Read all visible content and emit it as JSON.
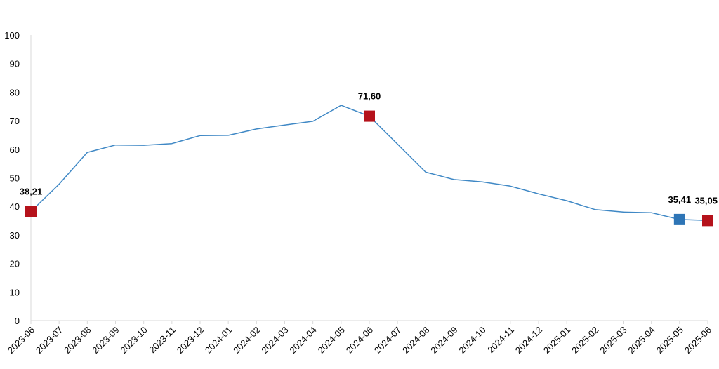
{
  "chart_data": {
    "type": "line",
    "title": "",
    "xlabel": "",
    "ylabel": "",
    "ylim": [
      0,
      100
    ],
    "yticks": [
      0,
      10,
      20,
      30,
      40,
      50,
      60,
      70,
      80,
      90,
      100
    ],
    "grid": false,
    "legend": "none",
    "categories": [
      "2023-06",
      "2023-07",
      "2023-08",
      "2023-09",
      "2023-10",
      "2023-11",
      "2023-12",
      "2024-01",
      "2024-02",
      "2024-03",
      "2024-04",
      "2024-05",
      "2024-06",
      "2024-07",
      "2024-08",
      "2024-09",
      "2024-10",
      "2024-11",
      "2024-12",
      "2025-01",
      "2025-02",
      "2025-03",
      "2025-04",
      "2025-05",
      "2025-06"
    ],
    "series": [
      {
        "color": "#3f88c5",
        "values": [
          38.21,
          47.8,
          58.9,
          61.5,
          61.4,
          62.0,
          64.8,
          64.9,
          67.1,
          68.5,
          69.8,
          75.4,
          71.6,
          61.8,
          52.0,
          49.4,
          48.6,
          47.1,
          44.4,
          42.0,
          38.9,
          38.0,
          37.8,
          35.41,
          35.05
        ]
      }
    ],
    "markers": [
      {
        "category": "2023-06",
        "value": 38.21,
        "label": "38,21",
        "color": "#b5121b"
      },
      {
        "category": "2024-06",
        "value": 71.6,
        "label": "71,60",
        "color": "#b5121b"
      },
      {
        "category": "2025-05",
        "value": 35.41,
        "label": "35,41",
        "color": "#2e75b6"
      },
      {
        "category": "2025-06",
        "value": 35.05,
        "label": "35,05",
        "color": "#b5121b"
      }
    ],
    "axis_color": "#d9d9d9"
  }
}
